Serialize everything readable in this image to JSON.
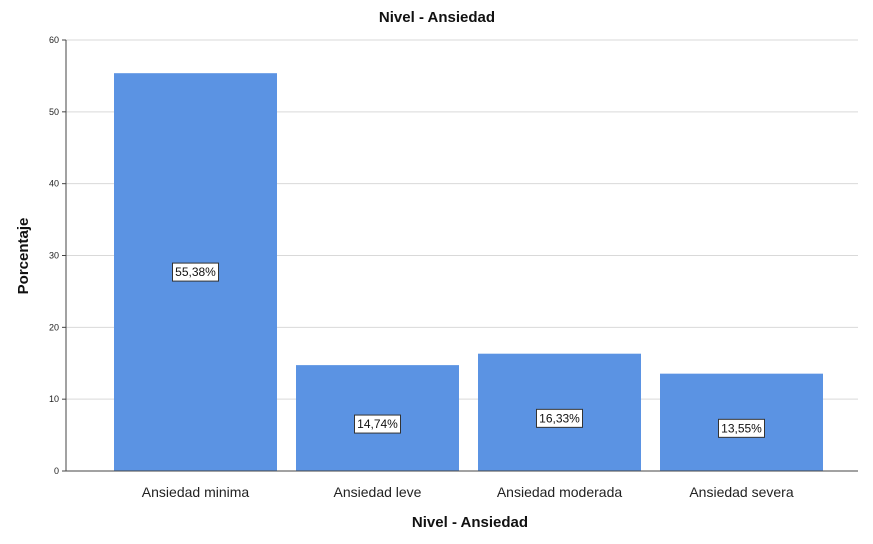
{
  "chart_data": {
    "type": "bar",
    "title": "Nivel - Ansiedad",
    "xlabel": "Nivel - Ansiedad",
    "ylabel": "Porcentaje",
    "categories": [
      "Ansiedad minima",
      "Ansiedad leve",
      "Ansiedad moderada",
      "Ansiedad severa"
    ],
    "values": [
      55.38,
      14.74,
      16.33,
      13.55
    ],
    "data_labels": [
      "55,38%",
      "14,74%",
      "16,33%",
      "13,55%"
    ],
    "ylim": [
      0,
      60
    ],
    "yticks": [
      0,
      10,
      20,
      30,
      40,
      50,
      60
    ],
    "grid": true,
    "bar_color": "#5b93e3"
  }
}
